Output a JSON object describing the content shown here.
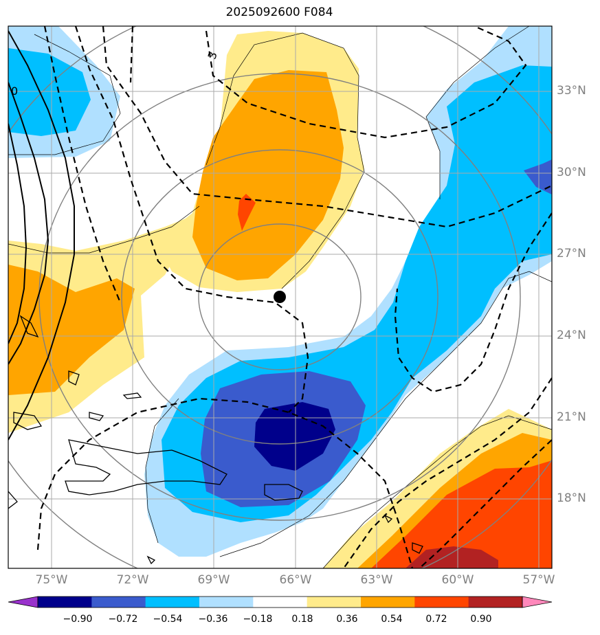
{
  "title": "2025092600 F084",
  "latitude_labels": [
    "33°N",
    "30°N",
    "27°N",
    "24°N",
    "21°N",
    "18°N"
  ],
  "longitude_labels": [
    "75°W",
    "72°W",
    "69°W",
    "66°W",
    "63°W",
    "60°W",
    "57°W"
  ],
  "colorbar": {
    "labels": [
      "−0.90",
      "−0.72",
      "−0.54",
      "−0.36",
      "−0.18",
      "0.18",
      "0.36",
      "0.54",
      "0.72",
      "0.90"
    ],
    "colors": [
      "#9932cc",
      "#00008b",
      "#3a5bcd",
      "#00bfff",
      "#b0e0ff",
      "#ffffff",
      "#ffeb8b",
      "#ffa500",
      "#ff4500",
      "#b22222",
      "#ff88bb"
    ]
  },
  "contour_labels": [
    "3",
    "0"
  ],
  "colors": {
    "grid": "#aaaaaa",
    "range_rings": "#808080",
    "contours": "#000000",
    "axis_labels": "#808080"
  }
}
